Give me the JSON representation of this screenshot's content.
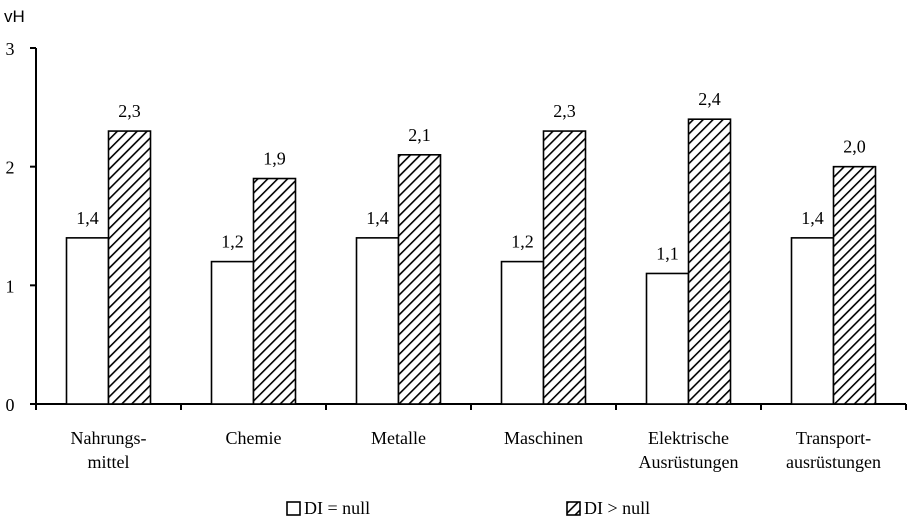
{
  "chart_data": {
    "type": "bar",
    "ylabel": "vH",
    "ylim": [
      0,
      3
    ],
    "yticks": [
      "0",
      "1",
      "2",
      "3"
    ],
    "categories": [
      [
        "Nahrungs-",
        "mittel"
      ],
      [
        "Chemie"
      ],
      [
        "Metalle"
      ],
      [
        "Maschinen"
      ],
      [
        "Elektrische",
        "Ausrüstungen"
      ],
      [
        "Transport-",
        "ausrüstungen"
      ]
    ],
    "series": [
      {
        "name": "DI = null",
        "values": [
          1.4,
          1.2,
          1.4,
          1.2,
          1.1,
          1.4
        ],
        "labels": [
          "1,4",
          "1,2",
          "1,4",
          "1,2",
          "1,1",
          "1,4"
        ],
        "fill": "#ffffff"
      },
      {
        "name": "DI > null",
        "values": [
          2.3,
          1.9,
          2.1,
          2.3,
          2.4,
          2.0
        ],
        "labels": [
          "2,3",
          "1,9",
          "2,1",
          "2,3",
          "2,4",
          "2,0"
        ],
        "fill": "hatched"
      }
    ],
    "legend_position": "bottom",
    "grid": false
  },
  "legend": {
    "item1": "DI = null",
    "item2": "DI > null"
  }
}
